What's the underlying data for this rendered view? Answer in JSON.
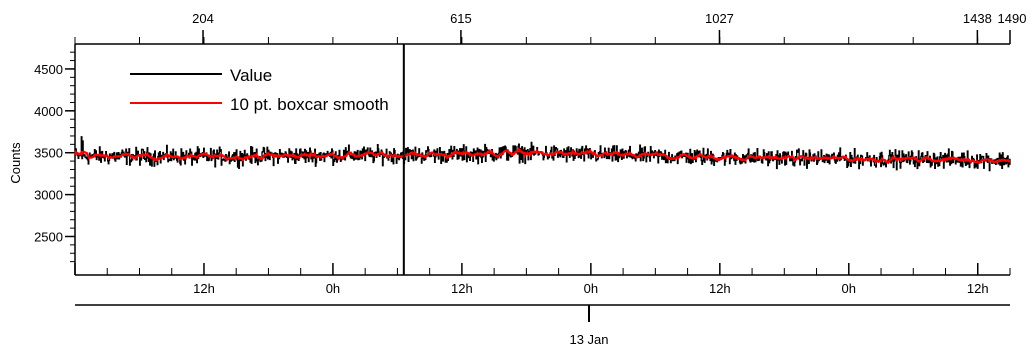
{
  "chart_data": {
    "type": "line",
    "title": "",
    "ylabel": "Counts",
    "ylim": [
      2100,
      4750
    ],
    "y_ticks": [
      2500,
      3000,
      3500,
      4000,
      4500
    ],
    "top_axis": {
      "range": [
        0,
        1490
      ],
      "ticks": [
        204,
        615,
        1027,
        1438
      ],
      "end_label": "1490"
    },
    "bottom_axis": {
      "tick_labels": [
        "12h",
        "0h",
        "12h",
        "0h",
        "12h",
        "0h",
        "12h"
      ],
      "tick_hours": [
        12,
        24,
        36,
        48,
        60,
        72,
        84
      ],
      "hours_range": [
        0,
        87
      ],
      "date_label": "13 Jan"
    },
    "cursor_index": 524,
    "legend": {
      "placement": "top-left",
      "box": false
    },
    "colors": {
      "value": "#000000",
      "smooth": "#ff0000",
      "axis": "#000000"
    },
    "series": [
      {
        "name": "Value",
        "kind": "noisy",
        "n_points": 1491,
        "trend": [
          [
            0,
            3460
          ],
          [
            200,
            3450
          ],
          [
            400,
            3470
          ],
          [
            600,
            3480
          ],
          [
            700,
            3500
          ],
          [
            800,
            3480
          ],
          [
            1000,
            3450
          ],
          [
            1200,
            3430
          ],
          [
            1400,
            3420
          ],
          [
            1490,
            3410
          ]
        ],
        "noise": 75,
        "spikes": [
          [
            10,
            3690
          ],
          [
            12,
            3640
          ]
        ]
      },
      {
        "name": "10 pt. boxcar smooth",
        "kind": "smooth",
        "window": 10
      }
    ]
  }
}
